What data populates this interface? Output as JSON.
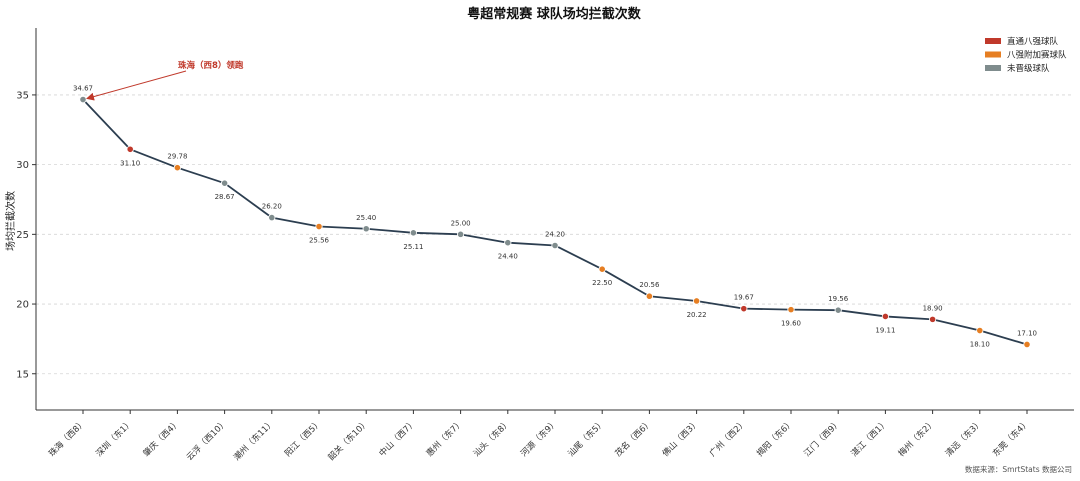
{
  "chart_data": {
    "type": "line",
    "title": "粤超常规赛 球队场均拦截次数",
    "ylabel": "场均拦截次数",
    "xlabel": "",
    "ylim": [
      12.4,
      39.8
    ],
    "yticks": [
      15,
      20,
      25,
      30,
      35
    ],
    "grid": "y-dashed",
    "legend_position": "top-right",
    "categories": [
      "珠海（西8）",
      "深圳（东1）",
      "肇庆（西4）",
      "云浮（西10）",
      "潮州（东11）",
      "阳江（西5）",
      "韶关（东10）",
      "中山（西7）",
      "惠州（东7）",
      "汕头（东8）",
      "河源（东9）",
      "汕尾（东5）",
      "茂名（西6）",
      "佛山（西3）",
      "广州（西2）",
      "揭阳（东6）",
      "江门（西9）",
      "湛江（西1）",
      "梅州（东2）",
      "清远（东3）",
      "东莞（东4）"
    ],
    "values": [
      34.67,
      31.1,
      29.78,
      28.67,
      26.2,
      25.56,
      25.4,
      25.11,
      25.0,
      24.4,
      24.2,
      22.5,
      20.56,
      20.22,
      19.67,
      19.6,
      19.56,
      19.11,
      18.9,
      18.1,
      17.1
    ],
    "value_labels": [
      "34.67",
      "31.10",
      "29.78",
      "28.67",
      "26.20",
      "25.56",
      "25.40",
      "25.11",
      "25.00",
      "24.40",
      "24.20",
      "22.50",
      "20.56",
      "20.22",
      "19.67",
      "19.60",
      "19.56",
      "19.11",
      "18.90",
      "18.10",
      "17.10"
    ],
    "groups": [
      "none",
      "direct",
      "playoff",
      "none",
      "none",
      "playoff",
      "none",
      "none",
      "none",
      "none",
      "none",
      "playoff",
      "playoff",
      "playoff",
      "direct",
      "playoff",
      "none",
      "direct",
      "direct",
      "playoff",
      "playoff"
    ],
    "legend": [
      {
        "key": "direct",
        "label": "直通八强球队",
        "color": "#c0392b"
      },
      {
        "key": "playoff",
        "label": "八强附加赛球队",
        "color": "#e67e22"
      },
      {
        "key": "none",
        "label": "未晋级球队",
        "color": "#7f8c8d"
      }
    ],
    "line_color": "#2c3e50",
    "annotation": {
      "text": "珠海（西8）领跑",
      "color": "#c0392b",
      "target_index": 0
    },
    "source": "数据来源：SmrtStats 数据公司"
  }
}
